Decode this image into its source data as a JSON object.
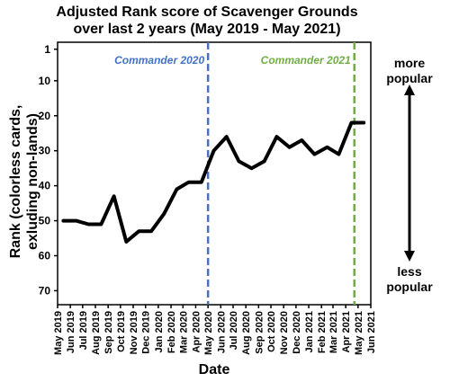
{
  "chart_data": {
    "type": "line",
    "title": [
      "Adjusted Rank score of Scavenger Grounds",
      "over last 2 years (May 2019 - May 2021)"
    ],
    "xlabel": "Date",
    "ylabel": [
      "Rank (colorless cards,",
      "exluding non-lands)"
    ],
    "y_ticks": [
      1,
      10,
      20,
      30,
      40,
      50,
      60,
      70
    ],
    "ylim": [
      74,
      -1
    ],
    "y_inverted": true,
    "x_ticks": [
      "May 2019",
      "Jun 2019",
      "Jul 2019",
      "Aug 2019",
      "Sep 2019",
      "Oct 2019",
      "Nov 2019",
      "Dec 2019",
      "Jan 2020",
      "Feb 2020",
      "Mar 2020",
      "Apr 2020",
      "May 2020",
      "Jun 2020",
      "Jul 2020",
      "Aug 2020",
      "Sep 2020",
      "Oct 2020",
      "Nov 2020",
      "Dec 2020",
      "Jan 2021",
      "Feb 2021",
      "Mar 2021",
      "Apr 2021",
      "May 2021",
      "Jun 2021"
    ],
    "series": [
      {
        "color": "#000000",
        "x": [
          "2019-05-15",
          "2019-06-15",
          "2019-07-15",
          "2019-08-15",
          "2019-09-15",
          "2019-10-15",
          "2019-11-15",
          "2019-12-15",
          "2020-01-15",
          "2020-02-15",
          "2020-03-15",
          "2020-04-15",
          "2020-05-15",
          "2020-06-15",
          "2020-07-15",
          "2020-08-15",
          "2020-09-15",
          "2020-10-15",
          "2020-11-15",
          "2020-12-15",
          "2021-01-15",
          "2021-02-15",
          "2021-03-15",
          "2021-04-15",
          "2021-05-15"
        ],
        "values": [
          50,
          50,
          51,
          51,
          43,
          56,
          53,
          53,
          48,
          41,
          39,
          39,
          30,
          26,
          33,
          35,
          33,
          26,
          29,
          27,
          31,
          29,
          31,
          22,
          22
        ]
      }
    ],
    "annotations": [
      {
        "label": "Commander 2020",
        "date": "2020-05-01",
        "color": "#4472c4"
      },
      {
        "label": "Commander 2021",
        "date": "2021-04-22",
        "color": "#70ad47"
      }
    ],
    "side_labels": {
      "top": [
        "more",
        "popular"
      ],
      "bottom": [
        "less",
        "popular"
      ]
    },
    "grid": false,
    "legend": "none"
  }
}
